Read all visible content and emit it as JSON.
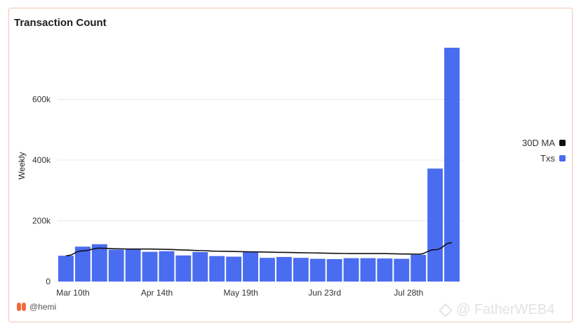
{
  "title": "Transaction Count",
  "footer": {
    "brand": "@hemi"
  },
  "watermark": {
    "text": "@ FatherWEB4"
  },
  "colors": {
    "bars": "#4a6cf0",
    "ma_line": "#111111",
    "grid": "#e9e9e9",
    "border": "#f0c4b6"
  },
  "legend": [
    {
      "label": "30D MA",
      "color": "#111111"
    },
    {
      "label": "Txs",
      "color": "#4a6cf0"
    }
  ],
  "chart_data": {
    "type": "bar",
    "title": "Transaction Count",
    "ylabel": "Weekly",
    "xlabel": "",
    "ylim": [
      0,
      800000
    ],
    "yticks": [
      0,
      200000,
      400000,
      600000
    ],
    "ytick_labels": [
      "0",
      "200k",
      "400k",
      "600k"
    ],
    "xtick_labels": [
      {
        "label": "Mar 10th",
        "index": 0
      },
      {
        "label": "Apr 14th",
        "index": 5
      },
      {
        "label": "May 19th",
        "index": 10
      },
      {
        "label": "Jun 23rd",
        "index": 15
      },
      {
        "label": "Jul 28th",
        "index": 20
      }
    ],
    "grid": "horizontal",
    "legend_position": "right",
    "series": [
      {
        "name": "Txs",
        "type": "bar",
        "values": [
          85000,
          115000,
          123000,
          105000,
          107000,
          98000,
          100000,
          86000,
          97000,
          84000,
          82000,
          99000,
          78000,
          81000,
          78000,
          75000,
          74000,
          77000,
          77000,
          76000,
          75000,
          88000,
          372000,
          770000
        ]
      },
      {
        "name": "30D MA",
        "type": "line",
        "values": [
          85000,
          101000,
          110000,
          108000,
          107000,
          107000,
          106000,
          104000,
          102000,
          100000,
          99000,
          98000,
          97000,
          96000,
          95000,
          94000,
          93000,
          92000,
          92000,
          92000,
          91000,
          90000,
          105000,
          128000
        ]
      }
    ]
  }
}
